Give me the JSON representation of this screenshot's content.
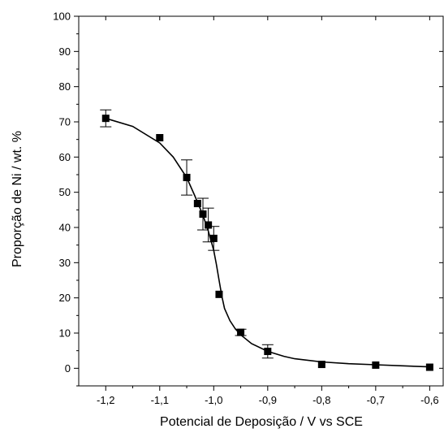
{
  "chart_data": {
    "type": "scatter",
    "title": "",
    "xlabel": "Potencial de Deposição / V vs SCE",
    "ylabel": "Proporção de Ni / wt. %",
    "xlim": [
      -1.25,
      -0.575
    ],
    "ylim": [
      -5,
      100
    ],
    "x_ticks": [
      "-1,2",
      "-1,1",
      "-1,0",
      "-0,9",
      "-0,8",
      "-0,7",
      "-0,6"
    ],
    "x_tick_values": [
      -1.2,
      -1.1,
      -1.0,
      -0.9,
      -0.8,
      -0.7,
      -0.6
    ],
    "y_ticks": [
      "0",
      "10",
      "20",
      "30",
      "40",
      "50",
      "60",
      "70",
      "80",
      "90",
      "100"
    ],
    "y_tick_values": [
      0,
      10,
      20,
      30,
      40,
      50,
      60,
      70,
      80,
      90,
      100
    ],
    "grid": false,
    "legend": "none",
    "marker": "square",
    "color": "#000000",
    "series": [
      {
        "points": [
          {
            "x": -1.2,
            "y": 71.0,
            "err": 2.4
          },
          {
            "x": -1.1,
            "y": 65.5,
            "err": 0
          },
          {
            "x": -1.05,
            "y": 54.2,
            "err": 5.0
          },
          {
            "x": -1.03,
            "y": 46.8,
            "err": 0
          },
          {
            "x": -1.02,
            "y": 43.8,
            "err": 4.5
          },
          {
            "x": -1.01,
            "y": 40.7,
            "err": 4.8
          },
          {
            "x": -1.0,
            "y": 36.9,
            "err": 3.4
          },
          {
            "x": -0.99,
            "y": 21.0,
            "err": 0
          },
          {
            "x": -0.95,
            "y": 10.2,
            "err": 0.9
          },
          {
            "x": -0.9,
            "y": 4.8,
            "err": 1.9
          },
          {
            "x": -0.8,
            "y": 1.1,
            "err": 0
          },
          {
            "x": -0.7,
            "y": 0.9,
            "err": 0
          },
          {
            "x": -0.6,
            "y": 0.3,
            "err": 0
          }
        ]
      }
    ],
    "fit_curve": [
      [
        -1.2,
        71.0
      ],
      [
        -1.15,
        68.7
      ],
      [
        -1.1,
        64.0
      ],
      [
        -1.075,
        60.0
      ],
      [
        -1.05,
        54.2
      ],
      [
        -1.035,
        49.0
      ],
      [
        -1.02,
        43.5
      ],
      [
        -1.01,
        39.0
      ],
      [
        -1.0,
        33.5
      ],
      [
        -0.995,
        29.5
      ],
      [
        -0.99,
        25.0
      ],
      [
        -0.985,
        20.5
      ],
      [
        -0.98,
        17.0
      ],
      [
        -0.97,
        13.5
      ],
      [
        -0.96,
        11.2
      ],
      [
        -0.95,
        9.5
      ],
      [
        -0.93,
        7.0
      ],
      [
        -0.9,
        4.8
      ],
      [
        -0.87,
        3.4
      ],
      [
        -0.85,
        2.7
      ],
      [
        -0.8,
        1.8
      ],
      [
        -0.75,
        1.3
      ],
      [
        -0.7,
        1.0
      ],
      [
        -0.65,
        0.7
      ],
      [
        -0.6,
        0.4
      ]
    ]
  }
}
